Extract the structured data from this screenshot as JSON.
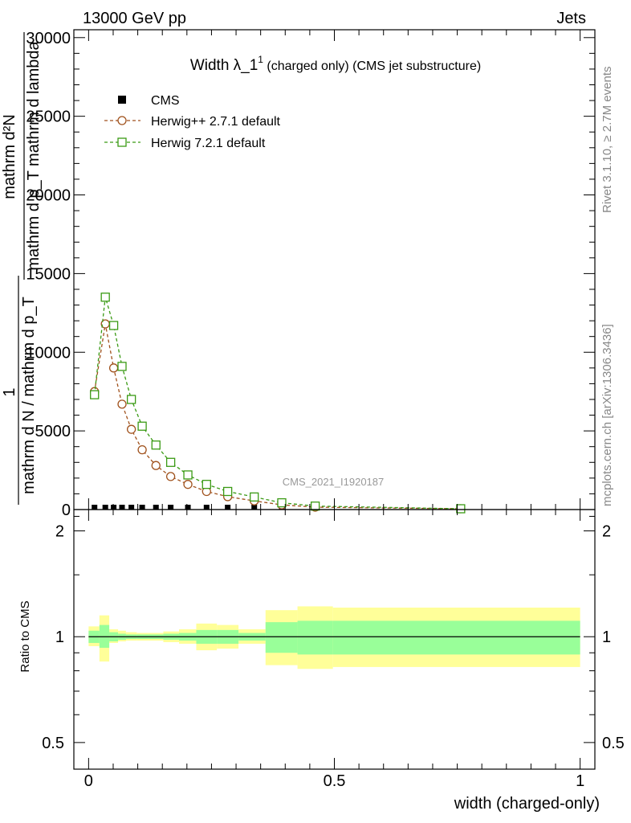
{
  "header": {
    "left": "13000 GeV pp",
    "right": "Jets"
  },
  "side_labels": {
    "rivet": "Rivet 3.1.10, ≥ 2.7M events",
    "mcplots": "mcplots.cern.ch [arXiv:1306.3436]"
  },
  "watermark": "CMS_2021_I1920187",
  "chart_data": [
    {
      "type": "line",
      "title": {
        "main": "Width λ_1",
        "sup": "1",
        "rest": " (charged only) (CMS jet substructure)"
      },
      "ylabel_lines": [
        "mathrm d²N",
        "mathrm d p_T mathrm d lambda",
        "1",
        "mathrm d N / mathrm d p_T"
      ],
      "xlim": [
        -0.03,
        1.03
      ],
      "ylim": [
        0,
        30500
      ],
      "yticks": [
        0,
        5000,
        10000,
        15000,
        20000,
        25000,
        30000
      ],
      "ytick_labels": [
        "0",
        "5000",
        "10000",
        "15000",
        "20000",
        "25000",
        "30000"
      ],
      "legend_position": "top-left",
      "series": [
        {
          "name": "CMS",
          "marker": "filled-square",
          "color": "#000000",
          "x": [
            0.012,
            0.034,
            0.051,
            0.068,
            0.087,
            0.109,
            0.137,
            0.167,
            0.202,
            0.24,
            0.283,
            0.337,
            0.393,
            0.461,
            0.757
          ],
          "values": [
            35,
            35,
            35,
            35,
            35,
            35,
            35,
            35,
            35,
            35,
            35,
            35,
            35,
            35,
            35
          ]
        },
        {
          "name": "Herwig++ 2.7.1 default",
          "marker": "open-circle",
          "color": "#a0521d",
          "x": [
            0.012,
            0.034,
            0.051,
            0.068,
            0.087,
            0.109,
            0.137,
            0.167,
            0.202,
            0.24,
            0.283,
            0.337,
            0.393,
            0.461,
            0.757
          ],
          "values": [
            7500,
            11800,
            9000,
            6700,
            5100,
            3800,
            2800,
            2100,
            1600,
            1150,
            820,
            550,
            300,
            150,
            10
          ]
        },
        {
          "name": "Herwig 7.2.1 default",
          "marker": "open-square",
          "color": "#3a9a14",
          "x": [
            0.012,
            0.034,
            0.051,
            0.068,
            0.087,
            0.109,
            0.137,
            0.167,
            0.202,
            0.24,
            0.283,
            0.337,
            0.393,
            0.461,
            0.757
          ],
          "values": [
            7300,
            13500,
            11700,
            9100,
            7000,
            5300,
            4100,
            3000,
            2200,
            1600,
            1150,
            800,
            430,
            220,
            15
          ]
        }
      ]
    },
    {
      "type": "area",
      "ylabel": "Ratio to CMS",
      "xlabel": "width (charged-only)",
      "xlim": [
        -0.03,
        1.03
      ],
      "ylim": [
        0.42,
        2.3
      ],
      "yticks": [
        0.5,
        1,
        2
      ],
      "ytick_labels": [
        "0.5",
        "1",
        "2"
      ],
      "xticks": [
        0,
        0.5,
        1
      ],
      "xtick_labels": [
        "0",
        "0.5",
        "1"
      ],
      "reference_line": 1,
      "inner_color": "#99ff99",
      "outer_color": "#ffff99",
      "bins": [
        {
          "lo": 0.0,
          "hi": 0.022,
          "in_lo": 0.96,
          "in_hi": 1.04,
          "out_lo": 0.94,
          "out_hi": 1.07
        },
        {
          "lo": 0.022,
          "hi": 0.042,
          "in_lo": 0.93,
          "in_hi": 1.08,
          "out_lo": 0.85,
          "out_hi": 1.15
        },
        {
          "lo": 0.042,
          "hi": 0.06,
          "in_lo": 0.97,
          "in_hi": 1.03,
          "out_lo": 0.96,
          "out_hi": 1.05
        },
        {
          "lo": 0.06,
          "hi": 0.076,
          "in_lo": 0.98,
          "in_hi": 1.02,
          "out_lo": 0.97,
          "out_hi": 1.04
        },
        {
          "lo": 0.076,
          "hi": 0.098,
          "in_lo": 0.985,
          "in_hi": 1.015,
          "out_lo": 0.975,
          "out_hi": 1.03
        },
        {
          "lo": 0.098,
          "hi": 0.121,
          "in_lo": 0.985,
          "in_hi": 1.015,
          "out_lo": 0.975,
          "out_hi": 1.025
        },
        {
          "lo": 0.121,
          "hi": 0.152,
          "in_lo": 0.985,
          "in_hi": 1.015,
          "out_lo": 0.975,
          "out_hi": 1.025
        },
        {
          "lo": 0.152,
          "hi": 0.184,
          "in_lo": 0.98,
          "in_hi": 1.02,
          "out_lo": 0.965,
          "out_hi": 1.035
        },
        {
          "lo": 0.184,
          "hi": 0.219,
          "in_lo": 0.975,
          "in_hi": 1.025,
          "out_lo": 0.955,
          "out_hi": 1.05
        },
        {
          "lo": 0.219,
          "hi": 0.261,
          "in_lo": 0.955,
          "in_hi": 1.045,
          "out_lo": 0.915,
          "out_hi": 1.09
        },
        {
          "lo": 0.261,
          "hi": 0.305,
          "in_lo": 0.955,
          "in_hi": 1.045,
          "out_lo": 0.925,
          "out_hi": 1.08
        },
        {
          "lo": 0.305,
          "hi": 0.36,
          "in_lo": 0.975,
          "in_hi": 1.025,
          "out_lo": 0.955,
          "out_hi": 1.05
        },
        {
          "lo": 0.36,
          "hi": 0.425,
          "in_lo": 0.9,
          "in_hi": 1.1,
          "out_lo": 0.83,
          "out_hi": 1.19
        },
        {
          "lo": 0.425,
          "hi": 0.497,
          "in_lo": 0.89,
          "in_hi": 1.11,
          "out_lo": 0.81,
          "out_hi": 1.22
        },
        {
          "lo": 0.497,
          "hi": 1.0,
          "in_lo": 0.89,
          "in_hi": 1.11,
          "out_lo": 0.82,
          "out_hi": 1.21
        }
      ]
    }
  ]
}
